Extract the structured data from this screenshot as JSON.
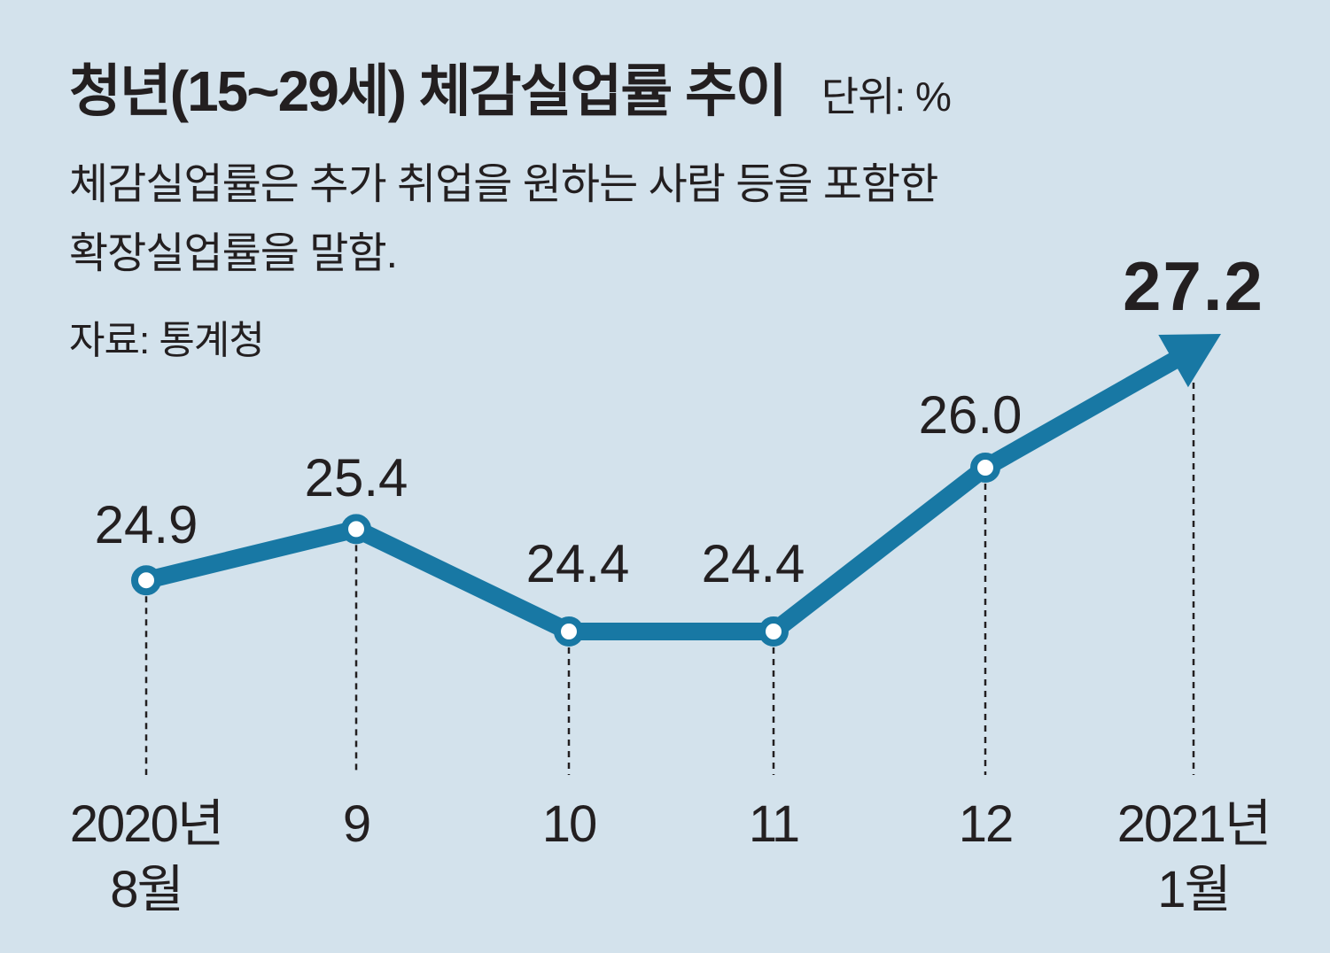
{
  "header": {
    "title": "청년(15~29세) 체감실업률 추이",
    "unit": "단위: %"
  },
  "description": {
    "line1": "체감실업률은 추가 취업을 원하는 사람 등을 포함한",
    "line2": "확장실업률을 말함."
  },
  "source": "자료: 통계청",
  "colors": {
    "background": "#d3e2ec",
    "line": "#1878a4",
    "marker_fill": "#ffffff",
    "text": "#231f20"
  },
  "chart_data": {
    "type": "line",
    "title": "청년(15~29세) 체감실업률 추이",
    "categories": [
      [
        "2020년",
        "8월"
      ],
      [
        "9"
      ],
      [
        "10"
      ],
      [
        "11"
      ],
      [
        "12"
      ],
      [
        "2021년",
        "1월"
      ]
    ],
    "values": [
      24.9,
      25.4,
      24.4,
      24.4,
      26.0,
      27.2
    ],
    "data_labels": [
      "24.9",
      "25.4",
      "24.4",
      "24.4",
      "26.0",
      "27.2"
    ],
    "unit": "%",
    "last_point_style": "arrow",
    "grid": false,
    "dashed_drop_lines": true
  }
}
